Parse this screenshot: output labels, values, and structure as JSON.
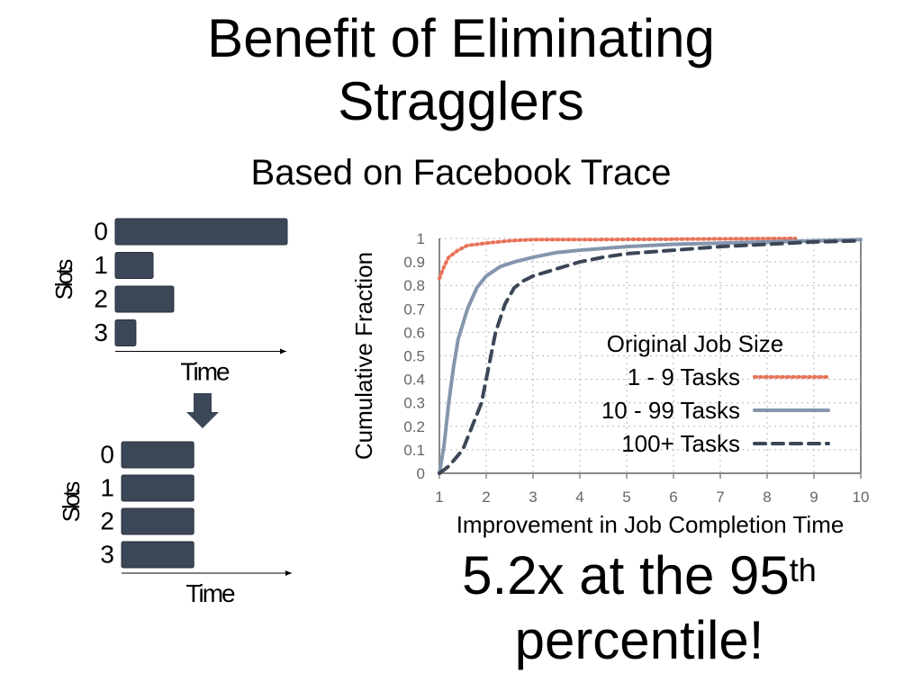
{
  "slide": {
    "title_line1": "Benefit of Eliminating",
    "title_line2": "Stragglers",
    "subtitle": "Based on Facebook Trace",
    "callout_main": "5.2x at the 95",
    "callout_sup": "th",
    "callout_line2": "percentile!"
  },
  "diagram": {
    "slots_label": "Slots",
    "time_label": "Time",
    "bar_color": "#3b4656",
    "before": {
      "slots": [
        "0",
        "1",
        "2",
        "3"
      ],
      "durations": [
        1.0,
        0.22,
        0.34,
        0.12
      ]
    },
    "after": {
      "slots": [
        "0",
        "1",
        "2",
        "3"
      ],
      "durations": [
        0.42,
        0.42,
        0.42,
        0.42
      ]
    }
  },
  "chart_data": {
    "type": "line",
    "xlabel": "Improvement in Job Completion Time",
    "ylabel": "Cumulative Fraction",
    "xlim": [
      1,
      10
    ],
    "ylim": [
      0,
      1
    ],
    "x_ticks": [
      "1",
      "2",
      "3",
      "4",
      "5",
      "6",
      "7",
      "8",
      "9",
      "10"
    ],
    "y_ticks": [
      "0",
      "0.1",
      "0.2",
      "0.3",
      "0.4",
      "0.5",
      "0.6",
      "0.7",
      "0.8",
      "0.9",
      "1"
    ],
    "grid": true,
    "legend_title": "Original Job Size",
    "legend_position": "center-right",
    "series": [
      {
        "name": "1 - 9 Tasks",
        "color": "#e8735a",
        "style": "dotted",
        "points": [
          [
            1,
            0.83
          ],
          [
            1.1,
            0.88
          ],
          [
            1.2,
            0.92
          ],
          [
            1.4,
            0.95
          ],
          [
            1.6,
            0.97
          ],
          [
            2,
            0.98
          ],
          [
            2.5,
            0.99
          ],
          [
            3,
            0.995
          ],
          [
            4,
            0.995
          ],
          [
            6,
            0.997
          ],
          [
            8.6,
            1.0
          ]
        ]
      },
      {
        "name": "10 - 99 Tasks",
        "color": "#8595ad",
        "style": "solid",
        "points": [
          [
            1,
            0
          ],
          [
            1.1,
            0.12
          ],
          [
            1.2,
            0.3
          ],
          [
            1.3,
            0.45
          ],
          [
            1.4,
            0.57
          ],
          [
            1.6,
            0.7
          ],
          [
            1.8,
            0.79
          ],
          [
            2,
            0.84
          ],
          [
            2.3,
            0.88
          ],
          [
            2.6,
            0.9
          ],
          [
            3,
            0.92
          ],
          [
            3.5,
            0.94
          ],
          [
            4,
            0.95
          ],
          [
            5,
            0.965
          ],
          [
            6,
            0.975
          ],
          [
            7,
            0.98
          ],
          [
            8,
            0.985
          ],
          [
            9,
            0.99
          ],
          [
            10,
            0.995
          ]
        ]
      },
      {
        "name": "100+ Tasks",
        "color": "#3b4656",
        "style": "dashed",
        "points": [
          [
            1,
            0
          ],
          [
            1.2,
            0.03
          ],
          [
            1.5,
            0.1
          ],
          [
            1.7,
            0.2
          ],
          [
            1.9,
            0.3
          ],
          [
            2.05,
            0.45
          ],
          [
            2.2,
            0.6
          ],
          [
            2.4,
            0.72
          ],
          [
            2.6,
            0.79
          ],
          [
            2.8,
            0.82
          ],
          [
            3,
            0.84
          ],
          [
            3.5,
            0.87
          ],
          [
            4,
            0.9
          ],
          [
            4.5,
            0.92
          ],
          [
            5,
            0.935
          ],
          [
            6,
            0.95
          ],
          [
            7,
            0.965
          ],
          [
            8,
            0.975
          ],
          [
            9,
            0.985
          ],
          [
            10,
            0.99
          ]
        ]
      }
    ]
  }
}
